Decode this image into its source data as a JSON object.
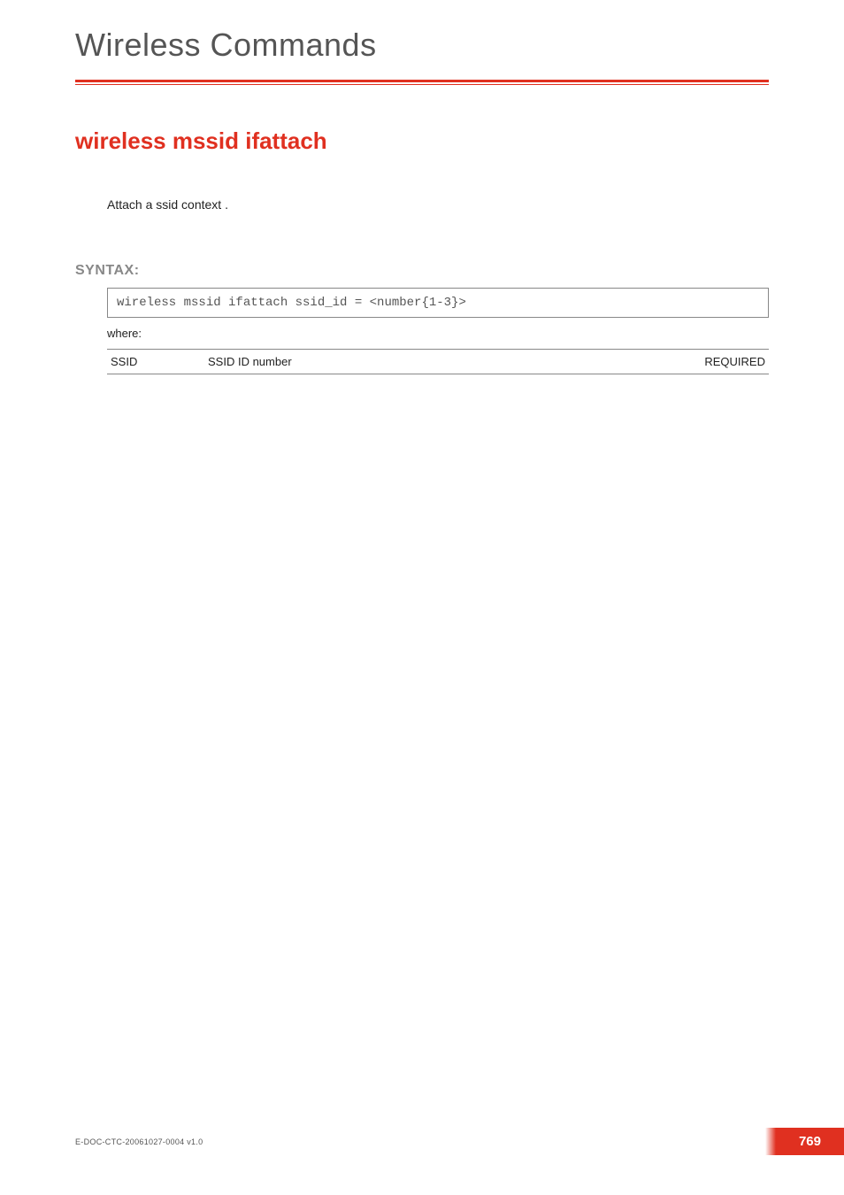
{
  "header": {
    "title": "Wireless Commands",
    "rule_color": "#e03020"
  },
  "command": {
    "title": "wireless mssid ifattach",
    "description": "Attach a ssid context ."
  },
  "syntax": {
    "label": "SYNTAX:",
    "code": "wireless mssid ifattach   ssid_id = <number{1-3}>",
    "where_label": "where:",
    "params": [
      {
        "name": "SSID",
        "desc": "SSID ID number",
        "req": "REQUIRED"
      }
    ]
  },
  "footer": {
    "doc_id": "E-DOC-CTC-20061027-0004 v1.0",
    "page_number": "769"
  },
  "colors": {
    "accent": "#e03020",
    "text": "#222222",
    "muted": "#888888",
    "header_text": "#555555",
    "background": "#ffffff"
  },
  "typography": {
    "header_title_fontsize": 36,
    "cmd_title_fontsize": 26,
    "body_fontsize": 14,
    "label_fontsize": 16,
    "table_fontsize": 13,
    "footer_fontsize": 9,
    "pagenum_fontsize": 15,
    "mono_family": "Courier New"
  }
}
